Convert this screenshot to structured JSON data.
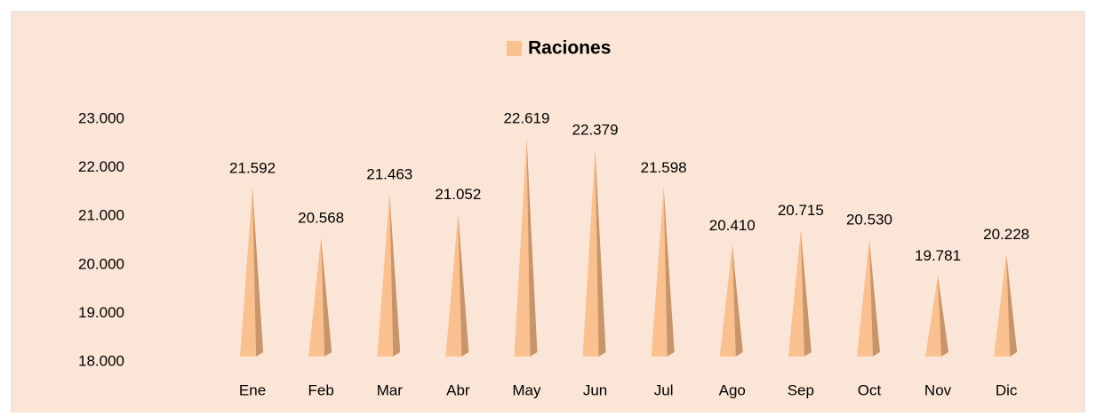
{
  "chart_data": {
    "type": "bar",
    "legend": "top",
    "categories": [
      "Ene",
      "Feb",
      "Mar",
      "Abr",
      "May",
      "Jun",
      "Jul",
      "Ago",
      "Sep",
      "Oct",
      "Nov",
      "Dic"
    ],
    "series": [
      {
        "name": "Raciones",
        "color": "#fbc08f",
        "values": [
          21592,
          20568,
          21463,
          21052,
          22619,
          22379,
          21598,
          20410,
          20715,
          20530,
          19781,
          20228
        ],
        "value_labels": [
          "21.592",
          "20.568",
          "21.463",
          "21.052",
          "22.619",
          "22.379",
          "21.598",
          "20.410",
          "20.715",
          "20.530",
          "19.781",
          "20.228"
        ]
      }
    ],
    "ylim": [
      18000,
      23000
    ],
    "yticks": [
      {
        "value": 18000,
        "label": "18.000"
      },
      {
        "value": 19000,
        "label": "19.000"
      },
      {
        "value": 20000,
        "label": "20.000"
      },
      {
        "value": 21000,
        "label": "21.000"
      },
      {
        "value": 22000,
        "label": "22.000"
      },
      {
        "value": 23000,
        "label": "23.000"
      }
    ]
  }
}
